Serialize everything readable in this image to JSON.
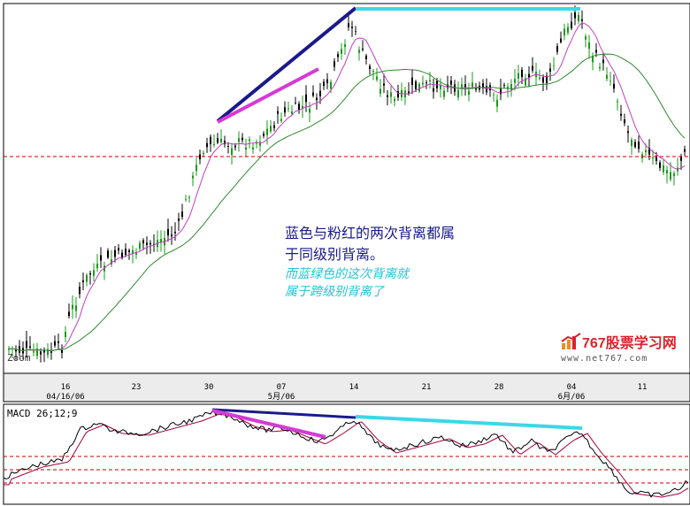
{
  "chart_data": [
    {
      "type": "candlestick",
      "panel": "price",
      "x_tick_labels": [
        "16\n04/16/06",
        "23",
        "30",
        "07\n5月/06",
        "14",
        "21",
        "28",
        "04\n6月/06",
        "11"
      ],
      "moving_averages": [
        {
          "color": "#c040c0",
          "role": "short"
        },
        {
          "color": "#2e8b2e",
          "role": "long"
        }
      ],
      "reference_line": {
        "style": "dashed",
        "color": "#c00000"
      },
      "trend_lines": [
        {
          "color": "#1a1a8c",
          "from": "30",
          "to": "14",
          "direction": "up"
        },
        {
          "color": "#d63ad6",
          "from": "30",
          "to": "07",
          "direction": "up"
        },
        {
          "color": "#3ad8e8",
          "from": "14",
          "to": "04",
          "direction": "flat"
        }
      ],
      "corner_label": "Zoom",
      "annotations": {
        "blue_line1": "蓝色与粉红的两次背离都属",
        "blue_line2": "于同级别背离。",
        "cyan_line1": "而蓝绿色的这次背离就",
        "cyan_line2": "属于跨级别背离了"
      }
    },
    {
      "type": "line",
      "panel": "indicator",
      "title": "MACD 26;12;9",
      "series": [
        {
          "color": "#000000",
          "role": "macd"
        },
        {
          "color": "#a00040",
          "role": "signal"
        }
      ],
      "reference_lines": {
        "style": "dashed",
        "color": "#c00000",
        "count": 3
      },
      "trend_lines": [
        {
          "color": "#1a1a8c",
          "from": "30",
          "to": "14",
          "direction": "down"
        },
        {
          "color": "#d63ad6",
          "from": "30",
          "to": "07",
          "direction": "down"
        },
        {
          "color": "#3ad8e8",
          "from": "14",
          "to": "04",
          "direction": "down"
        }
      ]
    }
  ],
  "watermark": {
    "text": "767股票学习网",
    "url": "www.net767.com",
    "colors": {
      "logo_red": "#d9232d",
      "logo_orange": "#f08a24"
    }
  }
}
